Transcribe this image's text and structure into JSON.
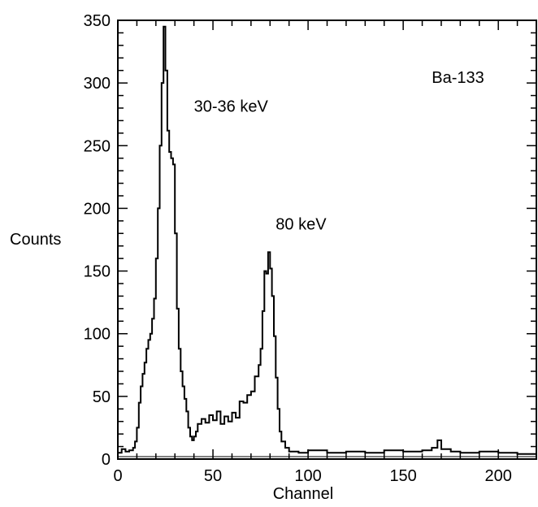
{
  "chart_data": {
    "type": "line",
    "title": "",
    "xlabel": "Channel",
    "ylabel": "Counts",
    "xlim": [
      0,
      220
    ],
    "ylim": [
      0,
      350
    ],
    "x_ticks": [
      0,
      50,
      100,
      150,
      200
    ],
    "y_ticks": [
      0,
      50,
      100,
      150,
      200,
      250,
      300,
      350
    ],
    "grid": false,
    "legend": "none",
    "color": "#000000",
    "annotations": [
      {
        "text": "Ba-133",
        "x": 165,
        "y": 300
      },
      {
        "text": "30-36 keV",
        "x": 40,
        "y": 277
      },
      {
        "text": "80 keV",
        "x": 83,
        "y": 183
      }
    ],
    "series": [
      {
        "values": [
          [
            0,
            5
          ],
          [
            2,
            8
          ],
          [
            4,
            6
          ],
          [
            6,
            7
          ],
          [
            8,
            9
          ],
          [
            9,
            14
          ],
          [
            10,
            25
          ],
          [
            11,
            45
          ],
          [
            12,
            58
          ],
          [
            13,
            68
          ],
          [
            14,
            77
          ],
          [
            15,
            88
          ],
          [
            16,
            95
          ],
          [
            17,
            100
          ],
          [
            18,
            112
          ],
          [
            19,
            128
          ],
          [
            20,
            160
          ],
          [
            21,
            200
          ],
          [
            22,
            250
          ],
          [
            23,
            300
          ],
          [
            24,
            345
          ],
          [
            25,
            310
          ],
          [
            26,
            262
          ],
          [
            27,
            245
          ],
          [
            28,
            240
          ],
          [
            29,
            235
          ],
          [
            30,
            180
          ],
          [
            31,
            120
          ],
          [
            32,
            88
          ],
          [
            33,
            70
          ],
          [
            34,
            58
          ],
          [
            35,
            48
          ],
          [
            36,
            38
          ],
          [
            37,
            25
          ],
          [
            38,
            18
          ],
          [
            39,
            15
          ],
          [
            40,
            18
          ],
          [
            41,
            22
          ],
          [
            42,
            28
          ],
          [
            44,
            32
          ],
          [
            46,
            29
          ],
          [
            48,
            35
          ],
          [
            50,
            31
          ],
          [
            52,
            38
          ],
          [
            54,
            28
          ],
          [
            56,
            34
          ],
          [
            58,
            30
          ],
          [
            60,
            37
          ],
          [
            62,
            33
          ],
          [
            64,
            46
          ],
          [
            66,
            45
          ],
          [
            68,
            51
          ],
          [
            70,
            54
          ],
          [
            72,
            66
          ],
          [
            74,
            75
          ],
          [
            75,
            88
          ],
          [
            76,
            118
          ],
          [
            77,
            150
          ],
          [
            78,
            148
          ],
          [
            79,
            165
          ],
          [
            80,
            152
          ],
          [
            81,
            130
          ],
          [
            82,
            98
          ],
          [
            83,
            65
          ],
          [
            84,
            40
          ],
          [
            85,
            22
          ],
          [
            86,
            14
          ],
          [
            88,
            9
          ],
          [
            90,
            6
          ],
          [
            95,
            5
          ],
          [
            100,
            7
          ],
          [
            110,
            5
          ],
          [
            120,
            6
          ],
          [
            130,
            5
          ],
          [
            140,
            7
          ],
          [
            150,
            6
          ],
          [
            160,
            7
          ],
          [
            165,
            9
          ],
          [
            168,
            15
          ],
          [
            170,
            8
          ],
          [
            175,
            6
          ],
          [
            180,
            5
          ],
          [
            190,
            6
          ],
          [
            200,
            5
          ],
          [
            210,
            4
          ],
          [
            220,
            3
          ]
        ]
      }
    ]
  }
}
